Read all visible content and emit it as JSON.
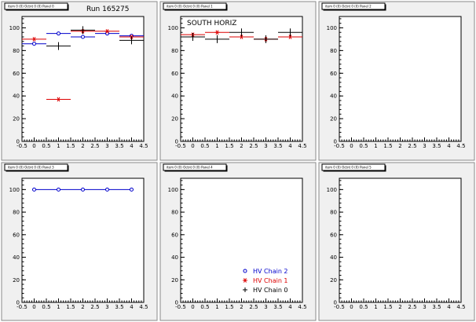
{
  "run_label": "Run 165275",
  "pads": [
    {
      "id": "pad-0",
      "title": "item 0 (0) Octnt 0 (0) Panel 0",
      "annotation": "",
      "x_ticks": [
        -0.5,
        0,
        0.5,
        1,
        1.5,
        2,
        2.5,
        3,
        3.5,
        4,
        4.5
      ],
      "x_tick_labels": [
        "-0.5",
        "0",
        "0.5",
        "1",
        "1.5",
        "2",
        "2.5",
        "3",
        "3.5",
        "4",
        "4.5"
      ],
      "y_ticks": [
        0,
        20,
        40,
        60,
        80,
        100
      ],
      "y_tick_labels": [
        "0",
        "20",
        "40",
        "60",
        "80",
        "100"
      ]
    },
    {
      "id": "pad-1",
      "title": "item 0 (0) Octnt 0 (0) Panel 1",
      "annotation": "SOUTH HORIZ",
      "x_ticks": [
        -0.5,
        0,
        0.5,
        1,
        1.5,
        2,
        2.5,
        3,
        3.5,
        4,
        4.5
      ],
      "x_tick_labels": [
        "-0.5",
        "0",
        "0.5",
        "1",
        "1.5",
        "2",
        "2.5",
        "3",
        "3.5",
        "4",
        "4.5"
      ],
      "y_ticks": [
        0,
        20,
        40,
        60,
        80,
        100
      ],
      "y_tick_labels": [
        "0",
        "20",
        "40",
        "60",
        "80",
        "100"
      ]
    },
    {
      "id": "pad-2",
      "title": "item 0 (0) Octnt 0 (0) Panel 2",
      "annotation": "",
      "x_ticks": [
        -0.5,
        0,
        0.5,
        1,
        1.5,
        2,
        2.5,
        3,
        3.5,
        4,
        4.5
      ],
      "x_tick_labels": [
        "-0.5",
        "0",
        "0.5",
        "1",
        "1.5",
        "2",
        "2.5",
        "3",
        "3.5",
        "4",
        "4.5"
      ],
      "y_ticks": [
        0,
        20,
        40,
        60,
        80,
        100
      ],
      "y_tick_labels": [
        "0",
        "20",
        "40",
        "60",
        "80",
        "100"
      ]
    },
    {
      "id": "pad-3",
      "title": "item 0 (0) Octnt 0 (0) Panel 3",
      "annotation": "",
      "x_ticks": [
        -0.5,
        0,
        0.5,
        1,
        1.5,
        2,
        2.5,
        3,
        3.5,
        4,
        4.5
      ],
      "x_tick_labels": [
        "-0.5",
        "0",
        "0.5",
        "1",
        "1.5",
        "2",
        "2.5",
        "3",
        "3.5",
        "4",
        "4.5"
      ],
      "y_ticks": [
        0,
        20,
        40,
        60,
        80,
        100
      ],
      "y_tick_labels": [
        "0",
        "20",
        "40",
        "60",
        "80",
        "100"
      ]
    },
    {
      "id": "pad-4",
      "title": "item 0 (0) Octnt 0 (0) Panel 4",
      "annotation": "",
      "x_ticks": [
        -0.5,
        0,
        0.5,
        1,
        1.5,
        2,
        2.5,
        3,
        3.5,
        4,
        4.5
      ],
      "x_tick_labels": [
        "-0.5",
        "0",
        "0.5",
        "1",
        "1.5",
        "2",
        "2.5",
        "3",
        "3.5",
        "4",
        "4.5"
      ],
      "y_ticks": [
        0,
        20,
        40,
        60,
        80,
        100
      ],
      "y_tick_labels": [
        "0",
        "20",
        "40",
        "60",
        "80",
        "100"
      ]
    },
    {
      "id": "pad-5",
      "title": "item 0 (0) Octnt 0 (0) Panel 5",
      "annotation": "",
      "x_ticks": [
        -0.5,
        0,
        0.5,
        1,
        1.5,
        2,
        2.5,
        3,
        3.5,
        4,
        4.5
      ],
      "x_tick_labels": [
        "-0.5",
        "0",
        "0.5",
        "1",
        "1.5",
        "2",
        "2.5",
        "3",
        "3.5",
        "4",
        "4.5"
      ],
      "y_ticks": [
        0,
        20,
        40,
        60,
        80,
        100
      ],
      "y_tick_labels": [
        "0",
        "20",
        "40",
        "60",
        "80",
        "100"
      ]
    }
  ],
  "legend": {
    "pad": "pad-4",
    "entries": [
      {
        "label": "HV Chain 2",
        "color": "#0000cc",
        "marker": "open-circle"
      },
      {
        "label": "HV Chain 1",
        "color": "#dd0000",
        "marker": "star"
      },
      {
        "label": "HV Chain 0",
        "color": "#000000",
        "marker": "cross"
      }
    ]
  },
  "chart_data": [
    {
      "type": "scatter",
      "pad": "pad-0",
      "xlim": [
        -0.5,
        4.5
      ],
      "ylim": [
        0,
        110
      ],
      "series": [
        {
          "name": "HV Chain 2",
          "color": "#0000cc",
          "marker": "open-circle",
          "x_err": 0.5,
          "points": [
            {
              "x": 0,
              "y": 86
            },
            {
              "x": 1,
              "y": 95
            },
            {
              "x": 2,
              "y": 92
            },
            {
              "x": 3,
              "y": 95
            },
            {
              "x": 4,
              "y": 93
            }
          ]
        },
        {
          "name": "HV Chain 1",
          "color": "#dd0000",
          "marker": "star",
          "x_err": 0.5,
          "points": [
            {
              "x": 0,
              "y": 90
            },
            {
              "x": 1,
              "y": 37
            },
            {
              "x": 2,
              "y": 97
            },
            {
              "x": 3,
              "y": 97
            },
            {
              "x": 4,
              "y": 92
            }
          ]
        },
        {
          "name": "HV Chain 0",
          "color": "#000000",
          "marker": "cross",
          "x_err": 0.5,
          "points": [
            {
              "x": 1,
              "y": 84
            },
            {
              "x": 2,
              "y": 98
            },
            {
              "x": 4,
              "y": 89
            }
          ]
        }
      ]
    },
    {
      "type": "scatter",
      "pad": "pad-1",
      "xlim": [
        -0.5,
        4.5
      ],
      "ylim": [
        0,
        110
      ],
      "series": [
        {
          "name": "HV Chain 1",
          "color": "#dd0000",
          "marker": "star",
          "x_err": 0.5,
          "points": [
            {
              "x": 0,
              "y": 94
            },
            {
              "x": 1,
              "y": 96
            },
            {
              "x": 2,
              "y": 92
            },
            {
              "x": 3,
              "y": 90
            },
            {
              "x": 4,
              "y": 92
            }
          ]
        },
        {
          "name": "HV Chain 0",
          "color": "#000000",
          "marker": "cross",
          "x_err": 0.5,
          "points": [
            {
              "x": 0,
              "y": 92
            },
            {
              "x": 1,
              "y": 90
            },
            {
              "x": 2,
              "y": 96
            },
            {
              "x": 3,
              "y": 90
            },
            {
              "x": 4,
              "y": 96
            }
          ]
        }
      ]
    },
    {
      "type": "scatter",
      "pad": "pad-2",
      "xlim": [
        -0.5,
        4.5
      ],
      "ylim": [
        0,
        110
      ],
      "series": []
    },
    {
      "type": "line",
      "pad": "pad-3",
      "xlim": [
        -0.5,
        4.5
      ],
      "ylim": [
        0,
        110
      ],
      "series": [
        {
          "name": "HV Chain 2",
          "color": "#0000cc",
          "marker": "open-circle",
          "x_err": 0,
          "connect": true,
          "points": [
            {
              "x": 0,
              "y": 100
            },
            {
              "x": 1,
              "y": 100
            },
            {
              "x": 2,
              "y": 100
            },
            {
              "x": 3,
              "y": 100
            },
            {
              "x": 4,
              "y": 100
            }
          ]
        }
      ]
    },
    {
      "type": "scatter",
      "pad": "pad-4",
      "xlim": [
        -0.5,
        4.5
      ],
      "ylim": [
        0,
        110
      ],
      "series": []
    },
    {
      "type": "scatter",
      "pad": "pad-5",
      "xlim": [
        -0.5,
        4.5
      ],
      "ylim": [
        0,
        110
      ],
      "series": []
    }
  ]
}
